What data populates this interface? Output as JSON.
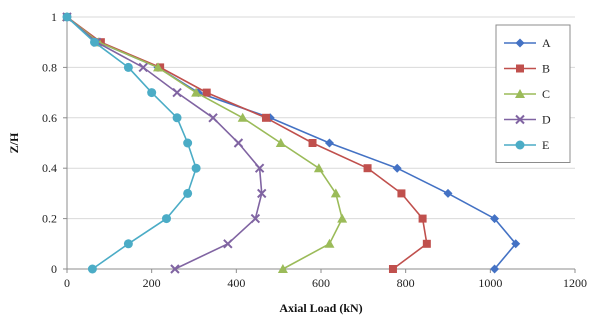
{
  "chart_data": {
    "type": "line",
    "title": "",
    "xlabel": "Axial Load (kN)",
    "ylabel": "Z/H",
    "xlim": [
      0,
      1200
    ],
    "ylim": [
      0,
      1
    ],
    "xticks": [
      0,
      200,
      400,
      600,
      800,
      1000,
      1200
    ],
    "yticks": [
      0,
      0.2,
      0.4,
      0.6,
      0.8,
      1
    ],
    "xtick_labels": [
      "0",
      "200",
      "400",
      "600",
      "800",
      "1000",
      "1200"
    ],
    "ytick_labels": [
      "0",
      "0.2",
      "0.4",
      "0.6",
      "0.8",
      "1"
    ],
    "grid": "horizontal",
    "legend_position": "top-right",
    "series": [
      {
        "name": "A",
        "color": "#4472C4",
        "marker": "diamond",
        "x": [
          0,
          75,
          215,
          310,
          480,
          620,
          780,
          900,
          1010,
          1060,
          1010
        ],
        "y": [
          1,
          0.9,
          0.8,
          0.7,
          0.6,
          0.5,
          0.4,
          0.3,
          0.2,
          0.1,
          0
        ]
      },
      {
        "name": "B",
        "color": "#C0504D",
        "marker": "square",
        "x": [
          0,
          80,
          220,
          330,
          470,
          580,
          710,
          790,
          840,
          850,
          770
        ],
        "y": [
          1,
          0.9,
          0.8,
          0.7,
          0.6,
          0.5,
          0.4,
          0.3,
          0.2,
          0.1,
          0
        ]
      },
      {
        "name": "C",
        "color": "#9BBB59",
        "marker": "triangle",
        "x": [
          0,
          75,
          215,
          305,
          415,
          505,
          595,
          635,
          650,
          620,
          510
        ],
        "y": [
          1,
          0.9,
          0.8,
          0.7,
          0.6,
          0.5,
          0.4,
          0.3,
          0.2,
          0.1,
          0
        ]
      },
      {
        "name": "D",
        "color": "#8064A2",
        "marker": "x",
        "x": [
          0,
          70,
          180,
          260,
          345,
          405,
          455,
          460,
          445,
          380,
          255
        ],
        "y": [
          1,
          0.9,
          0.8,
          0.7,
          0.6,
          0.5,
          0.4,
          0.3,
          0.2,
          0.1,
          0
        ]
      },
      {
        "name": "E",
        "color": "#4BACC6",
        "marker": "circle",
        "x": [
          0,
          65,
          145,
          200,
          260,
          285,
          305,
          285,
          235,
          145,
          60
        ],
        "y": [
          1,
          0.9,
          0.8,
          0.7,
          0.6,
          0.5,
          0.4,
          0.3,
          0.2,
          0.1,
          0
        ]
      }
    ]
  }
}
